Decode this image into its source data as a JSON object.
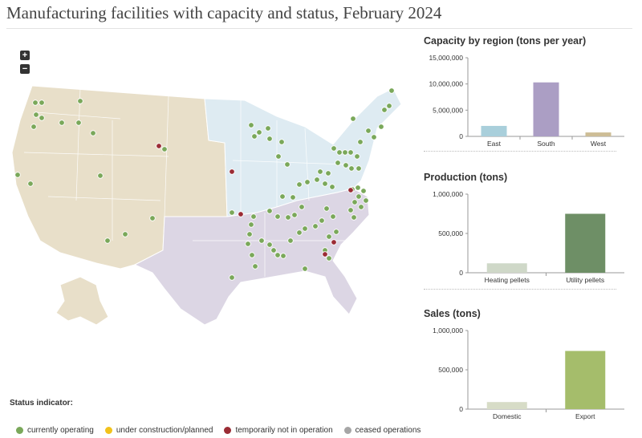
{
  "title": "Manufacturing facilities with capacity and status, February 2024",
  "zoom": {
    "in_label": "+",
    "out_label": "−"
  },
  "legend": {
    "title": "Status indicator:",
    "items": [
      {
        "label": "currently operating",
        "color": "#7aa85a"
      },
      {
        "label": "under construction/planned",
        "color": "#f2c21b"
      },
      {
        "label": "temporarily not in operation",
        "color": "#9b2c35"
      },
      {
        "label": "ceased operations",
        "color": "#a6a6a6"
      }
    ]
  },
  "region_colors": {
    "West": "#e8dfc9",
    "East": "#deebf2",
    "South": "#dcd6e4"
  },
  "chart_data": [
    {
      "type": "bar",
      "title": "Capacity by region (tons per year)",
      "categories": [
        "East",
        "South",
        "West"
      ],
      "values": [
        2000000,
        10300000,
        750000
      ],
      "colors": [
        "#a9cfdb",
        "#ab9ec4",
        "#cdbd96"
      ],
      "ylim": [
        0,
        15000000
      ],
      "yticks": [
        0,
        5000000,
        10000000,
        15000000
      ],
      "ytick_labels": [
        "0",
        "5,000,000",
        "10,000,000",
        "15,000,000"
      ]
    },
    {
      "type": "bar",
      "title": "Production (tons)",
      "categories": [
        "Heating pellets",
        "Utility pellets"
      ],
      "values": [
        120000,
        750000
      ],
      "colors": [
        "#cfd8c8",
        "#6e8f66"
      ],
      "ylim": [
        0,
        1000000
      ],
      "yticks": [
        0,
        500000,
        1000000
      ],
      "ytick_labels": [
        "0",
        "500,000",
        "1,000,000"
      ]
    },
    {
      "type": "bar",
      "title": "Sales (tons)",
      "categories": [
        "Domestic",
        "Export"
      ],
      "values": [
        90000,
        740000
      ],
      "colors": [
        "#d7dcc7",
        "#a5bd6b"
      ],
      "ylim": [
        0,
        1000000
      ],
      "yticks": [
        0,
        500000,
        1000000
      ],
      "ytick_labels": [
        "0",
        "500,000",
        "1,000,000"
      ]
    }
  ]
}
